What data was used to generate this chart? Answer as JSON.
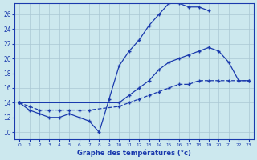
{
  "title": "Graphe des températures (°c)",
  "background_color": "#cce8ee",
  "grid_color": "#aac8d4",
  "line_color": "#1a3aad",
  "xlim": [
    -0.5,
    23.5
  ],
  "ylim": [
    9,
    27.5
  ],
  "yticks": [
    10,
    12,
    14,
    16,
    18,
    20,
    22,
    24,
    26
  ],
  "xticks": [
    0,
    1,
    2,
    3,
    4,
    5,
    6,
    7,
    8,
    9,
    10,
    11,
    12,
    13,
    14,
    15,
    16,
    17,
    18,
    19,
    20,
    21,
    22,
    23
  ],
  "series_top": [
    14,
    13,
    12.5,
    12,
    12,
    12.5,
    12,
    11.5,
    10,
    14.5,
    19,
    21,
    22.5,
    24.5,
    26,
    27.5,
    27.5,
    27,
    27,
    26.5,
    null,
    null,
    null,
    null
  ],
  "series_mid": [
    14,
    null,
    null,
    null,
    null,
    null,
    null,
    null,
    null,
    null,
    14,
    15,
    16,
    17,
    18.5,
    19.5,
    20,
    20.5,
    21,
    21.5,
    21,
    19.5,
    17,
    17
  ],
  "series_bot": [
    14,
    13.5,
    13,
    13,
    13,
    13,
    13,
    13,
    null,
    null,
    13.5,
    14,
    14.5,
    15,
    15.5,
    16,
    16.5,
    16.5,
    17,
    17,
    17,
    17,
    17,
    17
  ]
}
